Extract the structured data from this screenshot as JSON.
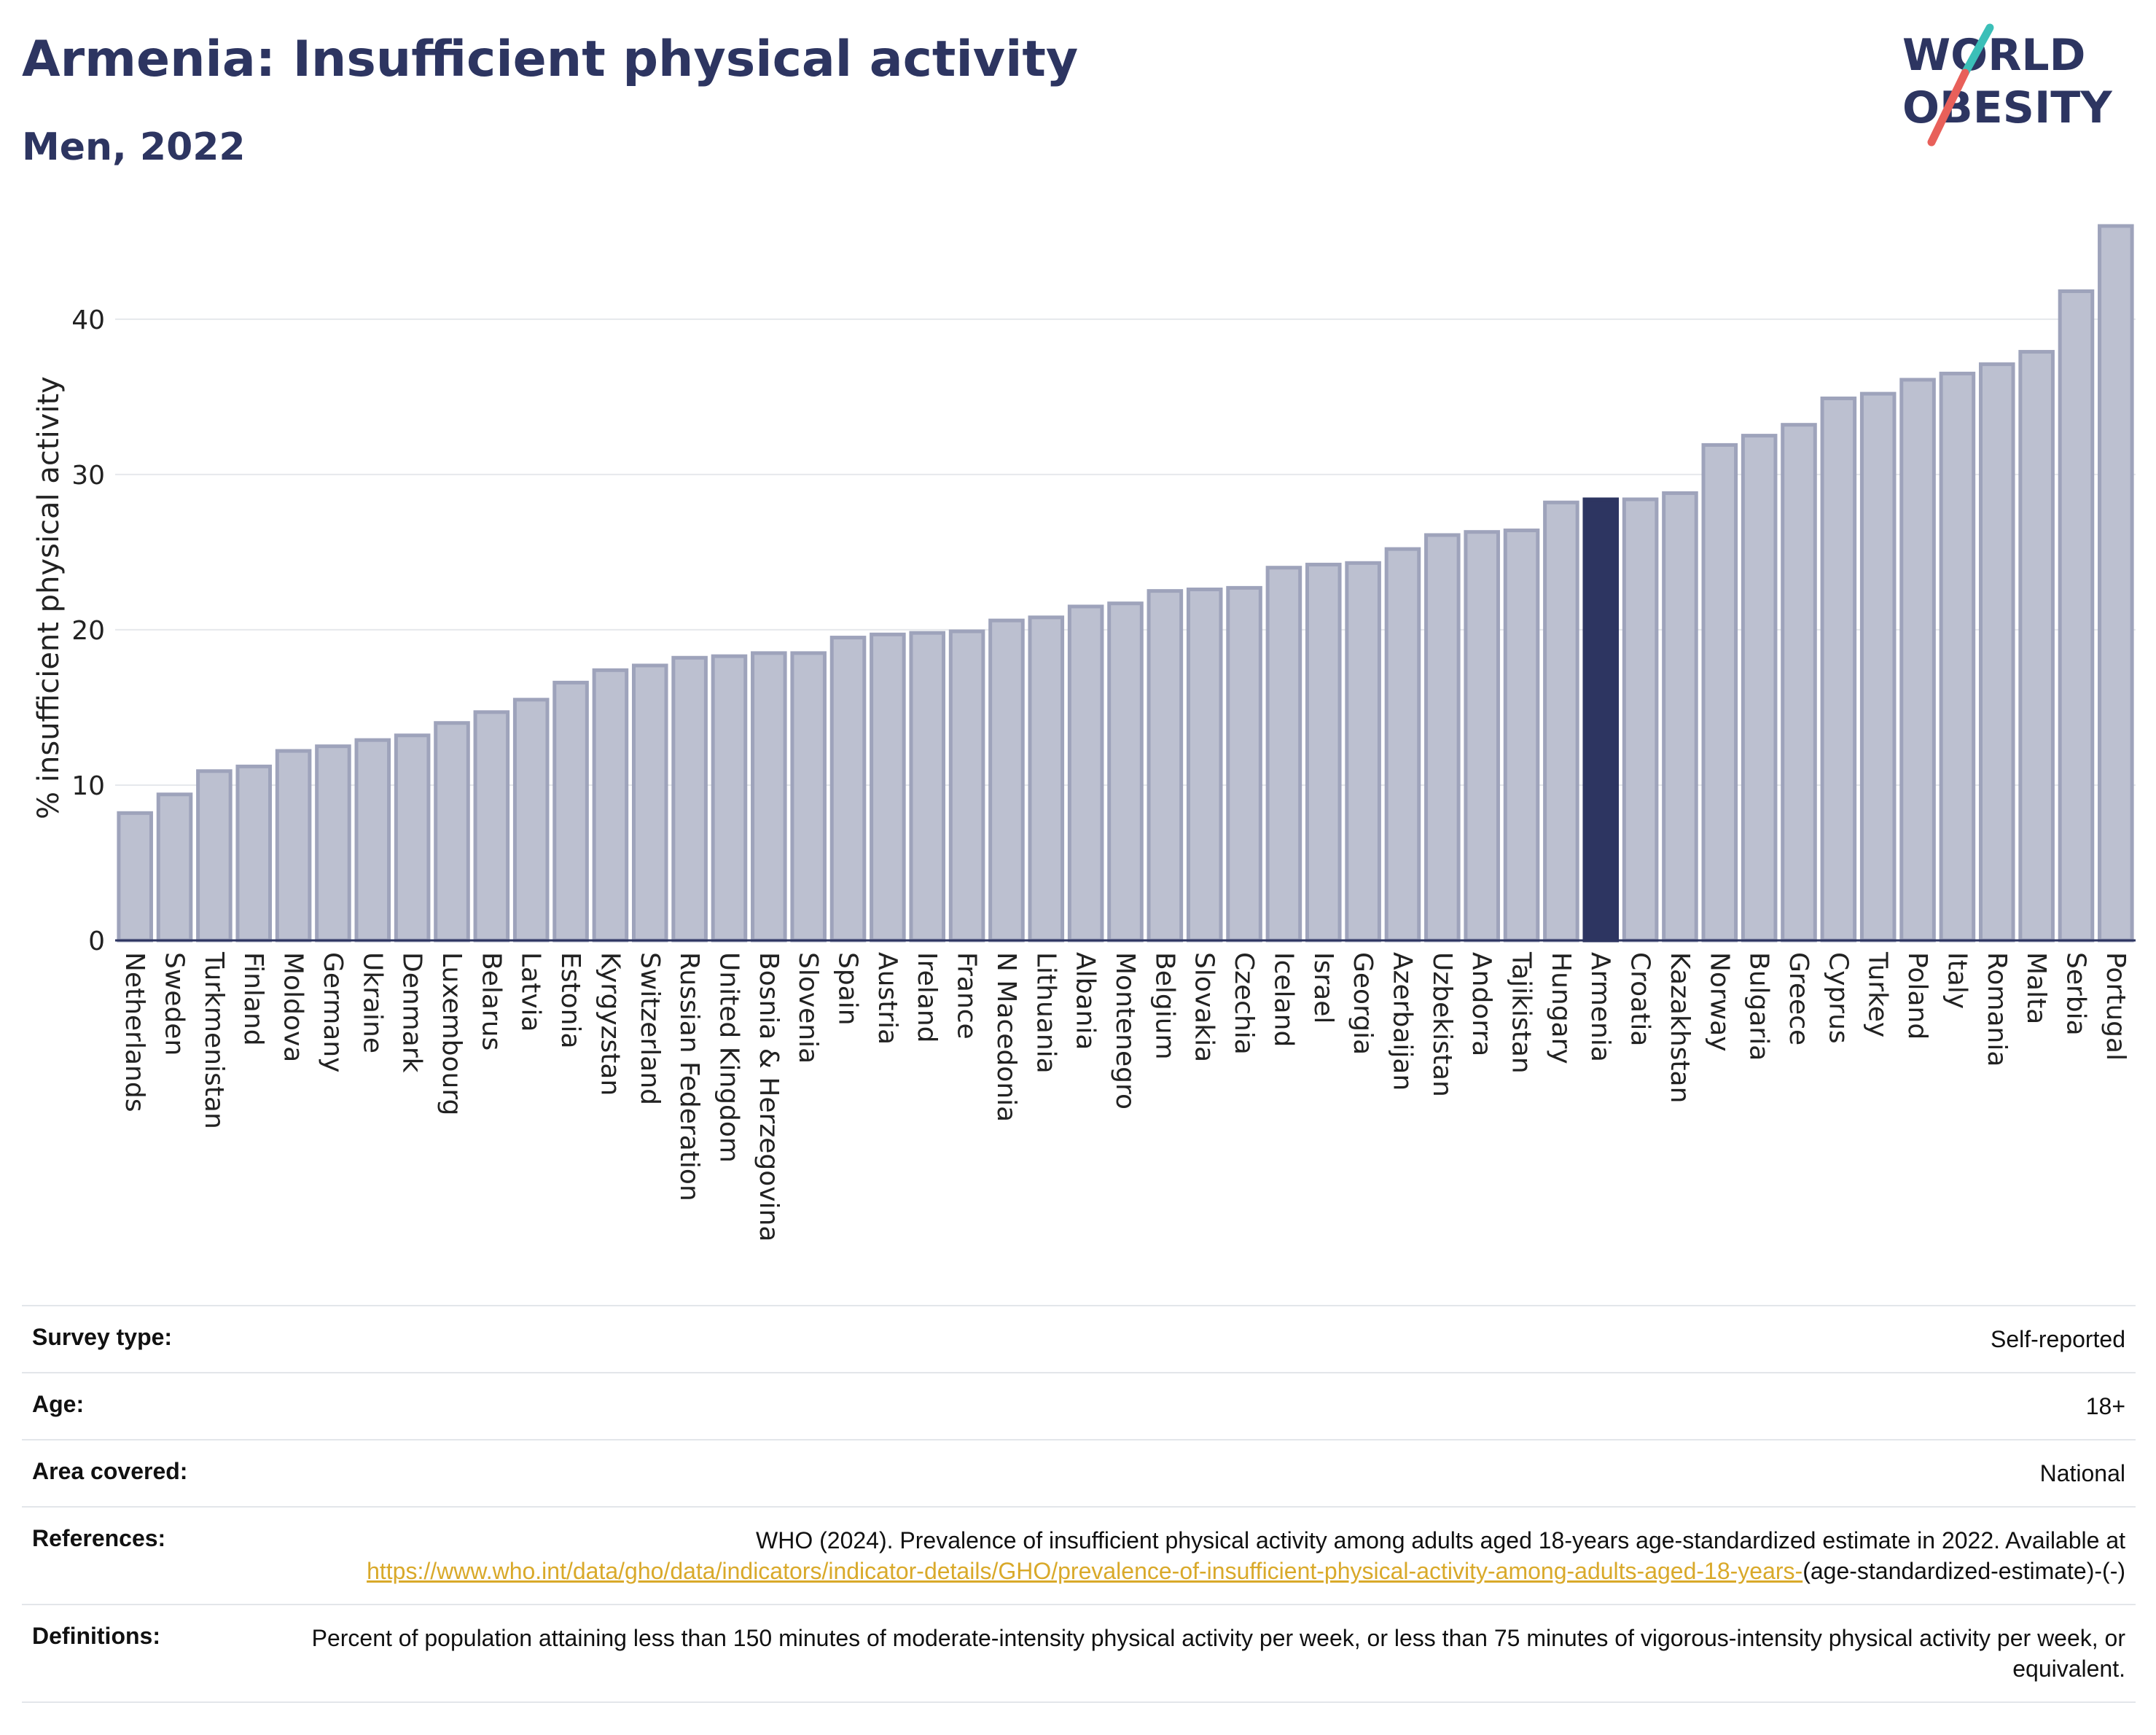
{
  "header": {
    "title": "Armenia: Insufficient physical activity",
    "subtitle": "Men, 2022"
  },
  "logo": {
    "line1": "WORLD",
    "line2": "OBESITY",
    "colors": {
      "text": "#2d3561",
      "slash_top": "#3bbfb8",
      "slash_bottom": "#e8605a"
    }
  },
  "colors": {
    "bar_fill": "#bcc0d0",
    "bar_stroke": "#9ea3bb",
    "highlight": "#2d3561",
    "grid": "#e6e8ec",
    "link": "#d9a92a"
  },
  "chart_data": {
    "type": "bar",
    "ylabel": "% insufficient physical activity",
    "ylim": [
      0,
      46
    ],
    "yticks": [
      0,
      10,
      20,
      30,
      40
    ],
    "grid": true,
    "highlight_category": "Armenia",
    "categories": [
      "Netherlands",
      "Sweden",
      "Turkmenistan",
      "Finland",
      "Moldova",
      "Germany",
      "Ukraine",
      "Denmark",
      "Luxembourg",
      "Belarus",
      "Latvia",
      "Estonia",
      "Kyrgyzstan",
      "Switzerland",
      "Russian Federation",
      "United Kingdom",
      "Bosnia & Herzegovina",
      "Slovenia",
      "Spain",
      "Austria",
      "Ireland",
      "France",
      "N Macedonia",
      "Lithuania",
      "Albania",
      "Montenegro",
      "Belgium",
      "Slovakia",
      "Czechia",
      "Iceland",
      "Israel",
      "Georgia",
      "Azerbaijan",
      "Uzbekistan",
      "Andorra",
      "Tajikistan",
      "Hungary",
      "Armenia",
      "Croatia",
      "Kazakhstan",
      "Norway",
      "Bulgaria",
      "Greece",
      "Cyprus",
      "Turkey",
      "Poland",
      "Italy",
      "Romania",
      "Malta",
      "Serbia",
      "Portugal"
    ],
    "values": [
      8.2,
      9.4,
      10.9,
      11.2,
      12.2,
      12.5,
      12.9,
      13.2,
      14.0,
      14.7,
      15.5,
      16.6,
      17.4,
      17.7,
      18.2,
      18.3,
      18.5,
      18.5,
      19.5,
      19.7,
      19.8,
      19.9,
      20.6,
      20.8,
      21.5,
      21.7,
      22.5,
      22.6,
      22.7,
      24.0,
      24.2,
      24.3,
      25.2,
      26.1,
      26.3,
      26.4,
      28.2,
      28.4,
      28.4,
      28.8,
      31.9,
      32.5,
      33.2,
      34.9,
      35.2,
      36.1,
      36.5,
      37.1,
      37.9,
      41.8,
      46.0
    ]
  },
  "info": {
    "survey_type_label": "Survey type:",
    "survey_type_value": "Self-reported",
    "age_label": "Age:",
    "age_value": "18+",
    "area_label": "Area covered:",
    "area_value": "National",
    "references_label": "References:",
    "references_text": "WHO (2024). Prevalence of insufficient physical activity among adults aged 18-years age-standardized estimate in 2022. Available at",
    "references_link": "https://www.who.int/data/gho/data/indicators/indicator-details/GHO/prevalence-of-insufficient-physical-activity-among-adults-aged-18-years-",
    "references_suffix": "(age-standardized-estimate)-(-)",
    "definitions_label": "Definitions:",
    "definitions_text": "Percent of population attaining less than 150 minutes of moderate-intensity physical activity per week, or less than 75 minutes of vigorous-intensity physical activity per week, or equivalent."
  }
}
